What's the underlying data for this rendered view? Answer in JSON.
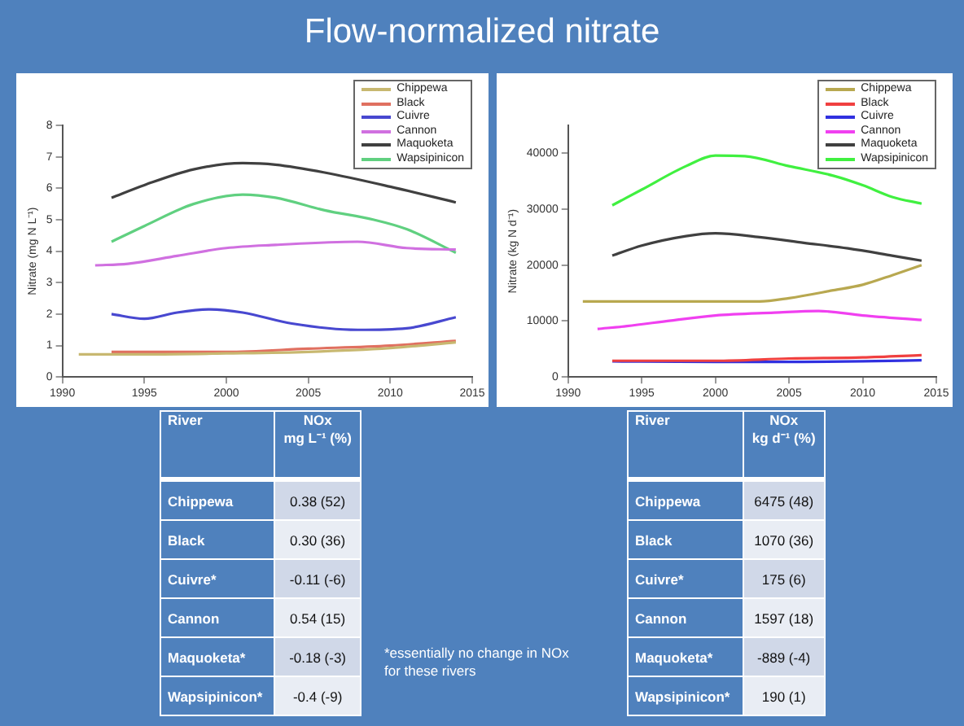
{
  "chart_data": [
    {
      "type": "line",
      "title": "Flow-normalized nitrate",
      "ylabel": "Nitrate (mg N L⁻¹)",
      "xlim": [
        1990,
        2015
      ],
      "xticks": [
        1990,
        1995,
        2000,
        2005,
        2010,
        2015
      ],
      "ylim": [
        0,
        8
      ],
      "yticks": [
        0,
        1,
        2,
        3,
        4,
        5,
        6,
        7,
        8
      ],
      "legend": "top right",
      "series": [
        {
          "name": "Chippewa",
          "color": "#c8b870",
          "x": [
            1991,
            1995,
            2000,
            2005,
            2010,
            2014
          ],
          "values": [
            0.72,
            0.72,
            0.75,
            0.8,
            0.92,
            1.1
          ]
        },
        {
          "name": "Black",
          "color": "#e07060",
          "x": [
            1993,
            2000,
            2005,
            2010,
            2014
          ],
          "values": [
            0.8,
            0.8,
            0.9,
            1.0,
            1.15
          ]
        },
        {
          "name": "Cuivre",
          "color": "#4848d0",
          "x": [
            1993,
            1995,
            1997,
            1999,
            2001,
            2004,
            2008,
            2011,
            2014
          ],
          "values": [
            2.0,
            1.85,
            2.05,
            2.15,
            2.05,
            1.7,
            1.5,
            1.55,
            1.9
          ]
        },
        {
          "name": "Cannon",
          "color": "#d070e0",
          "x": [
            1992,
            1994,
            1997,
            2000,
            2003,
            2008,
            2011,
            2014
          ],
          "values": [
            3.55,
            3.6,
            3.85,
            4.1,
            4.2,
            4.3,
            4.1,
            4.05
          ]
        },
        {
          "name": "Maquoketa",
          "color": "#404040",
          "x": [
            1993,
            1995,
            1998,
            2001,
            2003,
            2006,
            2010,
            2014
          ],
          "values": [
            5.7,
            6.1,
            6.6,
            6.8,
            6.75,
            6.5,
            6.05,
            5.55
          ]
        },
        {
          "name": "Wapsipinicon",
          "color": "#60d080",
          "x": [
            1993,
            1995,
            1998,
            2001,
            2003,
            2006,
            2009,
            2011,
            2014
          ],
          "values": [
            4.3,
            4.8,
            5.5,
            5.8,
            5.7,
            5.3,
            5.0,
            4.7,
            3.95
          ]
        }
      ]
    },
    {
      "type": "line",
      "ylabel": "Nitrate (kg N d⁻¹)",
      "xlim": [
        1990,
        2015
      ],
      "xticks": [
        1990,
        1995,
        2000,
        2005,
        2010,
        2015
      ],
      "ylim": [
        0,
        45000
      ],
      "yticks": [
        0,
        10000,
        20000,
        30000,
        40000
      ],
      "legend": "top right",
      "series": [
        {
          "name": "Chippewa",
          "color": "#b8a850",
          "x": [
            1991,
            1995,
            2000,
            2003,
            2005,
            2008,
            2010,
            2012,
            2014
          ],
          "values": [
            13500,
            13500,
            13500,
            13500,
            14100,
            15500,
            16500,
            18200,
            20000
          ]
        },
        {
          "name": "Black",
          "color": "#f04040",
          "x": [
            1993,
            2000,
            2005,
            2010,
            2014
          ],
          "values": [
            2900,
            2900,
            3300,
            3500,
            3900
          ]
        },
        {
          "name": "Cuivre",
          "color": "#3030e0",
          "x": [
            1993,
            2000,
            2005,
            2010,
            2014
          ],
          "values": [
            2800,
            2700,
            2700,
            2800,
            3000
          ]
        },
        {
          "name": "Cannon",
          "color": "#f040f0",
          "x": [
            1992,
            1994,
            1997,
            2000,
            2004,
            2007,
            2010,
            2014
          ],
          "values": [
            8600,
            9100,
            10100,
            11000,
            11500,
            11800,
            11000,
            10200
          ]
        },
        {
          "name": "Maquoketa",
          "color": "#404040",
          "x": [
            1993,
            1995,
            1998,
            2000,
            2003,
            2006,
            2009,
            2012,
            2014
          ],
          "values": [
            21700,
            23500,
            25200,
            25700,
            25000,
            24000,
            23000,
            21700,
            20800
          ]
        },
        {
          "name": "Wapsipinicon",
          "color": "#40f040",
          "x": [
            1993,
            1995,
            1998,
            2000,
            2002,
            2005,
            2008,
            2010,
            2012,
            2014
          ],
          "values": [
            30700,
            33500,
            37700,
            39600,
            39500,
            37700,
            36000,
            34300,
            32200,
            31000
          ]
        }
      ]
    },
    {
      "type": "other",
      "xlabel": "River",
      "ylabel": "NOx\nmg L⁻¹ (%)",
      "categories": [
        "Chippewa",
        "Black",
        "Cuivre*",
        "Cannon",
        "Maquoketa*",
        "Wapsipinicon*"
      ],
      "value_labels": [
        "0.38 (52)",
        "0.30 (36)",
        "-0.11 (-6)",
        "0.54 (15)",
        "-0.18 (-3)",
        "-0.4 (-9)"
      ],
      "annotations": [
        "*essentially no change in NOx for these rivers"
      ]
    },
    {
      "type": "other",
      "xlabel": "River",
      "ylabel": "NOx\nkg d⁻¹ (%)",
      "categories": [
        "Chippewa",
        "Black",
        "Cuivre*",
        "Cannon",
        "Maquoketa*",
        "Wapsipinicon*"
      ],
      "value_labels": [
        "6475 (48)",
        "1070 (36)",
        "175 (6)",
        "1597 (18)",
        "-889 (-4)",
        "190 (1)"
      ]
    }
  ]
}
